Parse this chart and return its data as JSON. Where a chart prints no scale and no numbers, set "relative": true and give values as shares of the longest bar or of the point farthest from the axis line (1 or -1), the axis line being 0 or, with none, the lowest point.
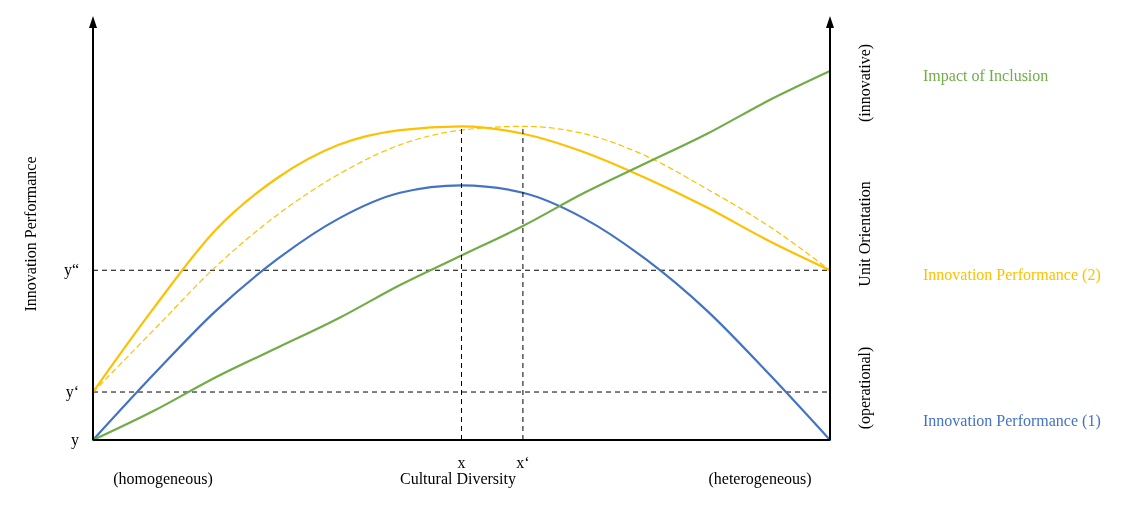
{
  "chart_data": {
    "type": "line",
    "relative": true,
    "xlabel": "Cultural Diversity",
    "ylabel": "Innovation Performance",
    "y2label": "Unit Orientation",
    "categories": [
      null,
      null,
      null,
      null,
      null,
      null,
      null,
      null,
      null,
      null,
      null,
      null,
      null
    ],
    "series": [
      {
        "name": "Innovation Performance (1)",
        "color": "#4472c4",
        "values": [
          0,
          0.18,
          0.35,
          0.49,
          0.6,
          0.67,
          0.69,
          0.67,
          0.6,
          0.49,
          0.35,
          0.18,
          0
        ]
      },
      {
        "name": "Innovation Performance (2)",
        "color": "#ffc000",
        "values": [
          0.13,
          0.36,
          0.57,
          0.71,
          0.8,
          0.84,
          0.85,
          0.83,
          0.78,
          0.71,
          0.63,
          0.54,
          0.46
        ]
      },
      {
        "color": "#ffc000",
        "line_style": "dashed",
        "values": [
          0.13,
          0.3,
          0.47,
          0.61,
          0.72,
          0.8,
          0.84,
          0.85,
          0.83,
          0.77,
          0.68,
          0.58,
          0.46
        ]
      },
      {
        "name": "Impact of Inclusion",
        "color": "#70ad47",
        "values": [
          0,
          0.08,
          0.17,
          0.25,
          0.33,
          0.42,
          0.5,
          0.58,
          0.67,
          0.75,
          0.83,
          0.92,
          1
        ]
      }
    ],
    "ref_lines": [
      {
        "axis": "y",
        "value": 0.13,
        "label": "y‘",
        "line_style": "dashed",
        "color": "#000000"
      },
      {
        "axis": "y",
        "value": 0.46,
        "label": "y“",
        "line_style": "dashed",
        "color": "#000000"
      }
    ],
    "annotations": [
      "y",
      "(homogeneous)",
      "(heterogeneous)",
      "(operational)",
      "(innovative)",
      "x",
      "x‘"
    ],
    "legend": "right"
  }
}
